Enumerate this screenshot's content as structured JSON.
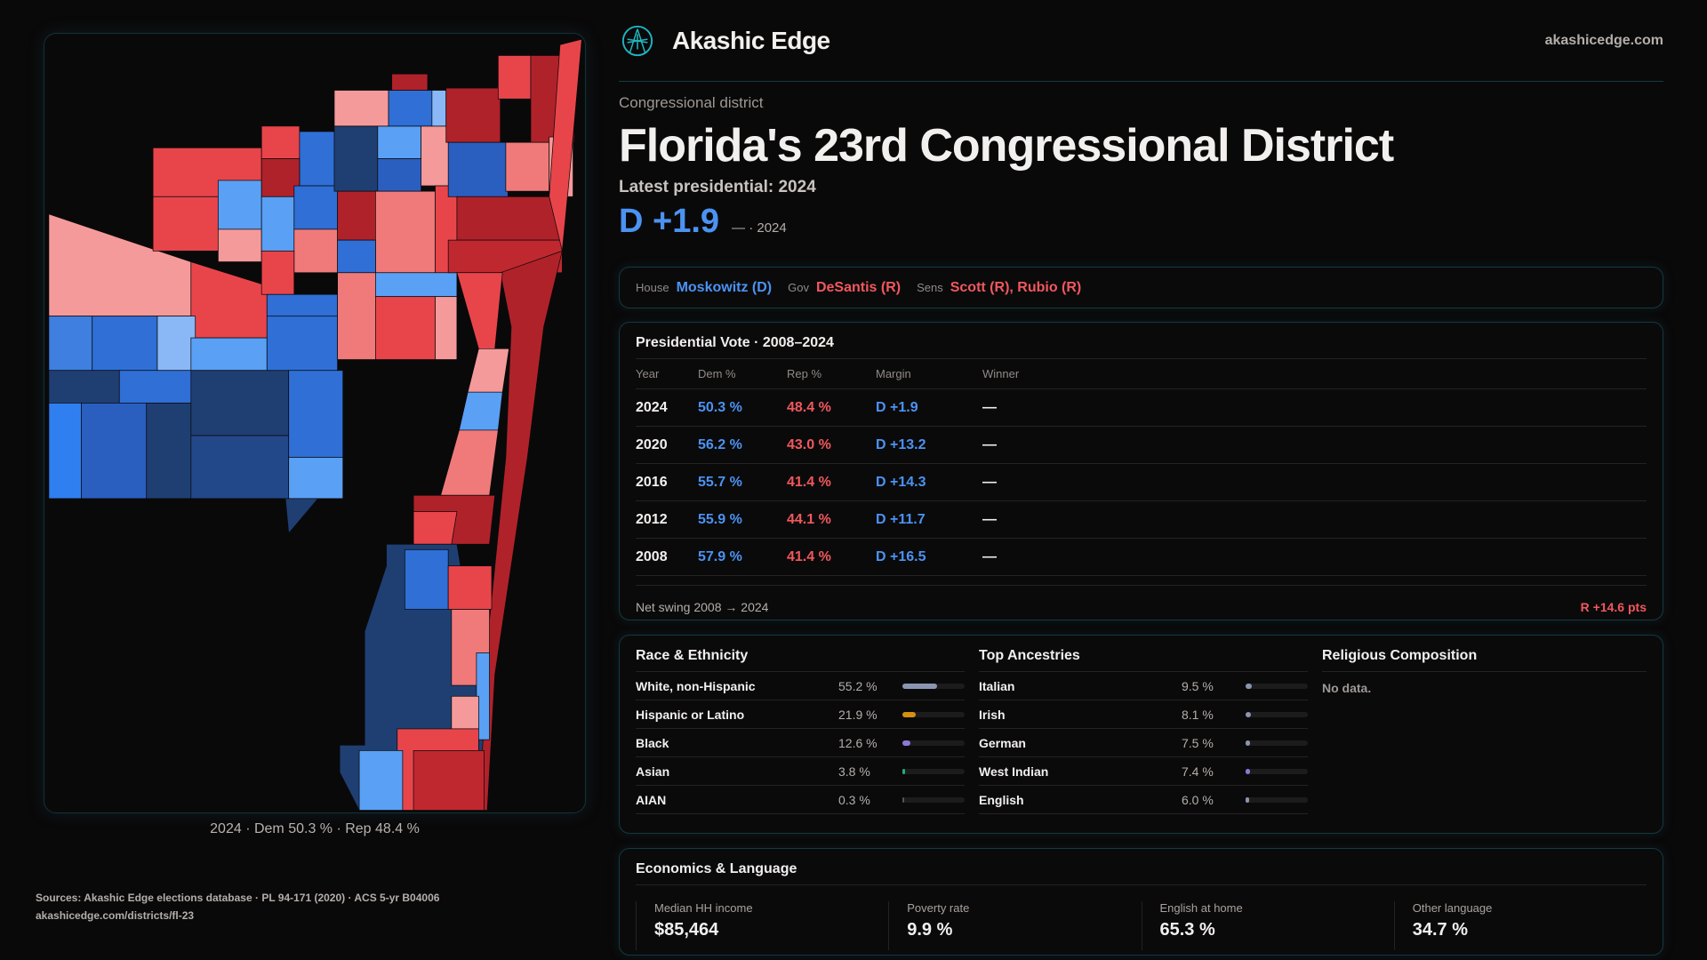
{
  "brand": {
    "name": "Akashic Edge",
    "site": "akashicedge.com",
    "logo_icon": "akashic-logo-icon"
  },
  "map": {
    "caption": "2024 · Dem 50.3 % · Rep 48.4 %"
  },
  "district": {
    "kicker": "Congressional district",
    "title": "Florida's 23rd Congressional District",
    "latest": "Latest presidential: 2024",
    "margin": "D +1.9",
    "margin_sub": "— · 2024"
  },
  "officials": [
    {
      "label": "House",
      "value": "Moskowitz (D)",
      "party": "D"
    },
    {
      "label": "Gov",
      "value": "DeSantis (R)",
      "party": "R"
    },
    {
      "label": "Sens",
      "value": "Scott (R), Rubio (R)",
      "party": "R"
    }
  ],
  "presidential": {
    "title": "Presidential Vote · 2008–2024",
    "headers": [
      "Year",
      "Dem %",
      "Rep %",
      "Margin",
      "Winner"
    ],
    "rows": [
      {
        "year": "2024",
        "dem": "50.3 %",
        "rep": "48.4 %",
        "margin": "D +1.9",
        "winner": "—"
      },
      {
        "year": "2020",
        "dem": "56.2 %",
        "rep": "43.0 %",
        "margin": "D +13.2",
        "winner": "—"
      },
      {
        "year": "2016",
        "dem": "55.7 %",
        "rep": "41.4 %",
        "margin": "D +14.3",
        "winner": "—"
      },
      {
        "year": "2012",
        "dem": "55.9 %",
        "rep": "44.1 %",
        "margin": "D +11.7",
        "winner": "—"
      },
      {
        "year": "2008",
        "dem": "57.9 %",
        "rep": "41.4 %",
        "margin": "D +16.5",
        "winner": "—"
      }
    ],
    "swing_label": "Net swing 2008 → 2024",
    "swing_value": "R +14.6 pts"
  },
  "race": {
    "title": "Race & Ethnicity",
    "items": [
      {
        "label": "White, non-Hispanic",
        "pct": "55.2 %",
        "value": 55.2,
        "color": "#8a96b0"
      },
      {
        "label": "Hispanic or Latino",
        "pct": "21.9 %",
        "value": 21.9,
        "color": "#d4900f"
      },
      {
        "label": "Black",
        "pct": "12.6 %",
        "value": 12.6,
        "color": "#8b78d8"
      },
      {
        "label": "Asian",
        "pct": "3.8 %",
        "value": 3.8,
        "color": "#1fae7a"
      },
      {
        "label": "AIAN",
        "pct": "0.3 %",
        "value": 0.3,
        "color": "#555555"
      }
    ]
  },
  "ancestry": {
    "title": "Top Ancestries",
    "items": [
      {
        "label": "Italian",
        "pct": "9.5 %",
        "value": 9.5,
        "color": "#8a96b0"
      },
      {
        "label": "Irish",
        "pct": "8.1 %",
        "value": 8.1,
        "color": "#8a96b0"
      },
      {
        "label": "German",
        "pct": "7.5 %",
        "value": 7.5,
        "color": "#8a96b0"
      },
      {
        "label": "West Indian",
        "pct": "7.4 %",
        "value": 7.4,
        "color": "#8b78d8"
      },
      {
        "label": "English",
        "pct": "6.0 %",
        "value": 6.0,
        "color": "#8a96b0"
      }
    ]
  },
  "religion": {
    "title": "Religious Composition",
    "empty": "No data."
  },
  "economics": {
    "title": "Economics & Language",
    "stats": [
      {
        "label": "Median HH income",
        "value": "$85,464"
      },
      {
        "label": "Poverty rate",
        "value": "9.9 %"
      },
      {
        "label": "English at home",
        "value": "65.3 %"
      },
      {
        "label": "Other language",
        "value": "34.7 %"
      }
    ]
  },
  "sources": {
    "line1": "Sources: Akashic Edge elections database · PL 94-171 (2020) · ACS 5-yr B04006",
    "line2": "akashicedge.com/districts/fl-23"
  },
  "colors": {
    "dem": "#4b93f2",
    "rep": "#f0585d",
    "accent": "#1fb5c0",
    "background": "#0a090a"
  }
}
